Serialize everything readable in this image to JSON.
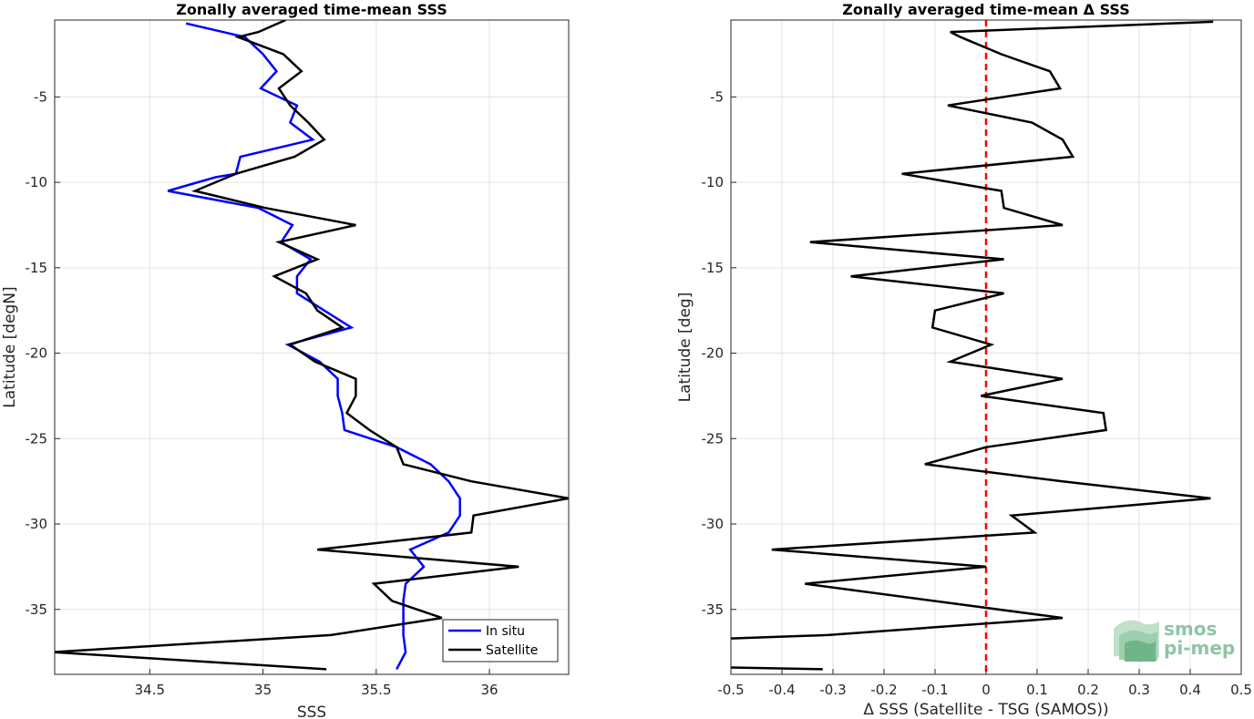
{
  "chart_data": [
    {
      "type": "line",
      "title": "Zonally averaged time-mean SSS",
      "xlabel": "SSS",
      "ylabel": "Latitude [degN]",
      "xlim": [
        34.08,
        36.35
      ],
      "ylim": [
        -38.8,
        -0.5
      ],
      "xticks": [
        "34.5",
        "35",
        "35.5",
        "36"
      ],
      "yticks": [
        "-5",
        "-10",
        "-15",
        "-20",
        "-25",
        "-30",
        "-35"
      ],
      "grid": true,
      "legend": "bottom-right",
      "series": [
        {
          "name": "In situ",
          "color": "#0000ff",
          "points": [
            [
              34.66,
              -0.7
            ],
            [
              34.92,
              -1.5
            ],
            [
              35.0,
              -2.5
            ],
            [
              35.06,
              -3.5
            ],
            [
              34.99,
              -4.5
            ],
            [
              35.15,
              -5.5
            ],
            [
              35.12,
              -6.5
            ],
            [
              35.22,
              -7.5
            ],
            [
              34.9,
              -8.5
            ],
            [
              34.88,
              -9.5
            ],
            [
              34.79,
              -9.7
            ],
            [
              34.58,
              -10.5
            ],
            [
              34.98,
              -11.5
            ],
            [
              35.13,
              -12.5
            ],
            [
              35.08,
              -13.5
            ],
            [
              35.21,
              -14.5
            ],
            [
              35.15,
              -15.5
            ],
            [
              35.15,
              -16.5
            ],
            [
              35.27,
              -17.5
            ],
            [
              35.39,
              -18.5
            ],
            [
              35.11,
              -19.5
            ],
            [
              35.25,
              -20.5
            ],
            [
              35.33,
              -21.5
            ],
            [
              35.33,
              -22.5
            ],
            [
              35.35,
              -23.5
            ],
            [
              35.36,
              -24.5
            ],
            [
              35.59,
              -25.5
            ],
            [
              35.74,
              -26.5
            ],
            [
              35.82,
              -27.5
            ],
            [
              35.87,
              -28.5
            ],
            [
              35.87,
              -29.5
            ],
            [
              35.82,
              -30.5
            ],
            [
              35.65,
              -31.5
            ],
            [
              35.71,
              -32.5
            ],
            [
              35.63,
              -33.5
            ],
            [
              35.62,
              -34.5
            ],
            [
              35.62,
              -35.5
            ],
            [
              35.62,
              -36.5
            ],
            [
              35.63,
              -37.5
            ],
            [
              35.59,
              -38.5
            ]
          ]
        },
        {
          "name": "Satellite",
          "color": "#000000",
          "points": [
            [
              35.1,
              -0.5
            ],
            [
              34.98,
              -1.2
            ],
            [
              34.89,
              -1.5
            ],
            [
              35.09,
              -2.5
            ],
            [
              35.17,
              -3.5
            ],
            [
              35.07,
              -4.5
            ],
            [
              35.12,
              -5.5
            ],
            [
              35.2,
              -6.5
            ],
            [
              35.27,
              -7.5
            ],
            [
              35.14,
              -8.5
            ],
            [
              34.88,
              -9.5
            ],
            [
              34.7,
              -10.5
            ],
            [
              35.01,
              -11.5
            ],
            [
              35.41,
              -12.5
            ],
            [
              35.07,
              -13.5
            ],
            [
              35.24,
              -14.5
            ],
            [
              35.05,
              -15.5
            ],
            [
              35.19,
              -16.5
            ],
            [
              35.24,
              -17.5
            ],
            [
              35.35,
              -18.5
            ],
            [
              35.12,
              -19.5
            ],
            [
              35.23,
              -20.5
            ],
            [
              35.41,
              -21.5
            ],
            [
              35.41,
              -22.5
            ],
            [
              35.37,
              -23.5
            ],
            [
              35.47,
              -24.5
            ],
            [
              35.59,
              -25.5
            ],
            [
              35.62,
              -26.5
            ],
            [
              35.92,
              -27.5
            ],
            [
              36.35,
              -28.5
            ],
            [
              35.93,
              -29.5
            ],
            [
              35.92,
              -30.5
            ],
            [
              35.24,
              -31.5
            ],
            [
              36.13,
              -32.5
            ],
            [
              35.49,
              -33.5
            ],
            [
              35.57,
              -34.5
            ],
            [
              35.79,
              -35.5
            ],
            [
              35.3,
              -36.5
            ],
            [
              34.07,
              -37.5
            ],
            [
              35.28,
              -38.5
            ]
          ]
        }
      ],
      "legend_entries": [
        "In situ",
        "Satellite"
      ]
    },
    {
      "type": "line",
      "title": "Zonally averaged time-mean Δ SSS",
      "xlabel": "Δ SSS (Satellite - TSG (SAMOS))",
      "ylabel": "Latitude [deg]",
      "xlim": [
        -0.5,
        0.5
      ],
      "ylim": [
        -38.8,
        -0.5
      ],
      "xticks": [
        "-0.5",
        "-0.4",
        "-0.3",
        "-0.2",
        "-0.1",
        "0",
        "0.1",
        "0.2",
        "0.3",
        "0.4",
        "0.5"
      ],
      "yticks": [
        "-5",
        "-10",
        "-15",
        "-20",
        "-25",
        "-30",
        "-35"
      ],
      "grid": true,
      "zero_line_color": "#ff0000",
      "series": [
        {
          "name": "",
          "color": "#000000",
          "points": [
            [
              0.445,
              -0.6
            ],
            [
              -0.07,
              -1.2
            ],
            [
              -0.05,
              -1.5
            ],
            [
              0.03,
              -2.5
            ],
            [
              0.125,
              -3.5
            ],
            [
              0.145,
              -4.5
            ],
            [
              -0.075,
              -5.5
            ],
            [
              0.09,
              -6.5
            ],
            [
              0.15,
              -7.5
            ],
            [
              0.17,
              -8.5
            ],
            [
              -0.165,
              -9.5
            ],
            [
              0.03,
              -10.5
            ],
            [
              0.035,
              -11.5
            ],
            [
              0.15,
              -12.5
            ],
            [
              -0.345,
              -13.5
            ],
            [
              0.035,
              -14.5
            ],
            [
              -0.265,
              -15.5
            ],
            [
              0.035,
              -16.5
            ],
            [
              -0.1,
              -17.5
            ],
            [
              -0.105,
              -18.5
            ],
            [
              0.01,
              -19.5
            ],
            [
              -0.07,
              -20.5
            ],
            [
              0.15,
              -21.5
            ],
            [
              -0.01,
              -22.5
            ],
            [
              0.23,
              -23.5
            ],
            [
              0.235,
              -24.5
            ],
            [
              0.0,
              -25.5
            ],
            [
              -0.12,
              -26.5
            ],
            [
              0.15,
              -27.5
            ],
            [
              0.44,
              -28.5
            ],
            [
              0.05,
              -29.5
            ],
            [
              0.095,
              -30.5
            ],
            [
              -0.42,
              -31.5
            ],
            [
              0.0,
              -32.5
            ],
            [
              -0.355,
              -33.5
            ],
            [
              0.15,
              -35.5
            ],
            [
              -0.31,
              -36.5
            ],
            [
              -0.5,
              -36.7
            ]
          ]
        },
        {
          "name": "",
          "color": "#000000",
          "points": [
            [
              -0.5,
              -38.4
            ],
            [
              -0.32,
              -38.5
            ]
          ]
        }
      ]
    }
  ],
  "logo": {
    "line1": "smos",
    "line2": "pi-mep"
  }
}
